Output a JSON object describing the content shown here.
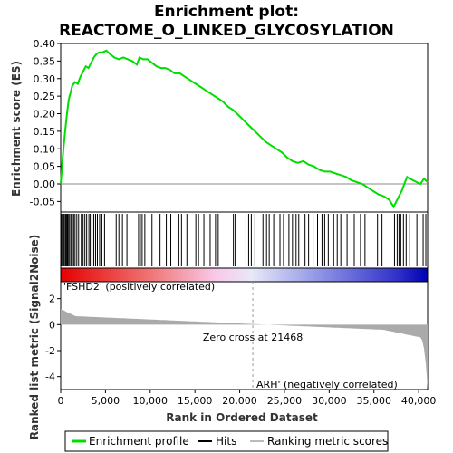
{
  "chart_data": {
    "type": "line",
    "title_line1": "Enrichment plot:",
    "title_line2": "REACTOME_O_LINKED_GLYCOSYLATION",
    "ylabel_top": "Enrichment score (ES)",
    "ylabel_bottom": "Ranked list metric (Signal2Noise)",
    "xlabel": "Rank in Ordered Dataset",
    "x_ticks": [
      0,
      5000,
      10000,
      15000,
      20000,
      25000,
      30000,
      35000,
      40000
    ],
    "x_tick_labels": [
      "0",
      "5,000",
      "10,000",
      "15,000",
      "20,000",
      "25,000",
      "30,000",
      "35,000",
      "40,000"
    ],
    "xlim": [
      0,
      41000
    ],
    "es_ylim": [
      -0.08,
      0.4
    ],
    "es_y_ticks": [
      -0.05,
      0.0,
      0.05,
      0.1,
      0.15,
      0.2,
      0.25,
      0.3,
      0.35,
      0.4
    ],
    "es_y_tick_labels": [
      "-0.05",
      "0.00",
      "0.05",
      "0.10",
      "0.15",
      "0.20",
      "0.25",
      "0.30",
      "0.35",
      "0.40"
    ],
    "metric_ylim": [
      -5,
      3.3
    ],
    "metric_y_ticks": [
      -4,
      -2,
      0,
      2
    ],
    "metric_y_tick_labels": [
      "-4",
      "-2",
      "0",
      "2"
    ],
    "enrichment_profile": {
      "x": [
        0,
        150,
        300,
        500,
        700,
        900,
        1100,
        1300,
        1600,
        1900,
        2200,
        2500,
        2800,
        3100,
        3400,
        3700,
        4000,
        4300,
        4700,
        5100,
        5500,
        6000,
        6500,
        7000,
        7500,
        8000,
        8500,
        8800,
        9200,
        9700,
        10200,
        10700,
        11200,
        11700,
        12200,
        12700,
        13300,
        13900,
        14500,
        15100,
        15700,
        16300,
        16900,
        17500,
        18100,
        18700,
        19300,
        19900,
        20500,
        21100,
        21700,
        22300,
        22900,
        23500,
        24100,
        24700,
        25300,
        25900,
        26500,
        27100,
        27700,
        28300,
        28900,
        29500,
        30100,
        30700,
        31300,
        31900,
        32500,
        33100,
        33700,
        34300,
        34900,
        35500,
        36100,
        36700,
        37200,
        37500,
        37800,
        38100,
        38400,
        38700,
        39000,
        39400,
        39800,
        40200,
        40600,
        41000
      ],
      "es": [
        0.0,
        0.05,
        0.1,
        0.15,
        0.2,
        0.24,
        0.26,
        0.28,
        0.29,
        0.285,
        0.305,
        0.32,
        0.335,
        0.33,
        0.345,
        0.36,
        0.37,
        0.375,
        0.375,
        0.38,
        0.37,
        0.36,
        0.355,
        0.36,
        0.355,
        0.35,
        0.34,
        0.36,
        0.355,
        0.355,
        0.345,
        0.335,
        0.33,
        0.33,
        0.325,
        0.315,
        0.315,
        0.305,
        0.295,
        0.285,
        0.275,
        0.265,
        0.255,
        0.245,
        0.235,
        0.22,
        0.21,
        0.195,
        0.18,
        0.165,
        0.15,
        0.135,
        0.12,
        0.11,
        0.1,
        0.09,
        0.075,
        0.065,
        0.06,
        0.065,
        0.055,
        0.05,
        0.04,
        0.035,
        0.035,
        0.03,
        0.025,
        0.02,
        0.01,
        0.005,
        0.0,
        -0.01,
        -0.02,
        -0.03,
        -0.035,
        -0.045,
        -0.065,
        -0.05,
        -0.035,
        -0.02,
        0.0,
        0.02,
        0.015,
        0.01,
        0.005,
        0.0,
        0.015,
        0.005
      ]
    },
    "hits": [
      80,
      200,
      320,
      420,
      550,
      650,
      760,
      880,
      1000,
      1150,
      1300,
      1450,
      1600,
      1800,
      2000,
      2300,
      2500,
      2700,
      2900,
      3150,
      3300,
      3500,
      3700,
      3900,
      4100,
      4350,
      4600,
      4900,
      6200,
      6500,
      6900,
      7400,
      8700,
      8900,
      9100,
      9400,
      10200,
      11100,
      11800,
      12300,
      13200,
      13500,
      14100,
      15100,
      15400,
      16000,
      16700,
      17300,
      17600,
      19300,
      19500,
      20700,
      21000,
      21300,
      21700,
      22600,
      23000,
      23300,
      23800,
      24500,
      24900,
      25500,
      25900,
      26300,
      26600,
      27300,
      27700,
      28200,
      28700,
      29200,
      29500,
      29900,
      30500,
      30900,
      31300,
      32000,
      32800,
      33500,
      34000,
      35400,
      35900,
      37300,
      37600,
      37800,
      38000,
      38300,
      38600,
      39000,
      39800,
      40500,
      40800
    ],
    "zero_cross_rank": 21468,
    "zero_cross_label": "Zero cross at 21468",
    "pos_label": "'FSHD2' (positively correlated)",
    "neg_label": "'ARH' (negatively correlated)",
    "legend": {
      "entries": [
        "Enrichment profile",
        "Hits",
        "Ranking metric scores"
      ],
      "colors": [
        "#00dd00",
        "#000000",
        "#bbbbbb"
      ]
    },
    "colors": {
      "es_line": "#00dd00",
      "hits": "#000000",
      "metric_fill": "#aaaaaa",
      "pos_text": "#ff0000",
      "neg_text": "#0000ff",
      "heatmap_pos": "#e60000",
      "heatmap_neg": "#0000cc"
    }
  }
}
